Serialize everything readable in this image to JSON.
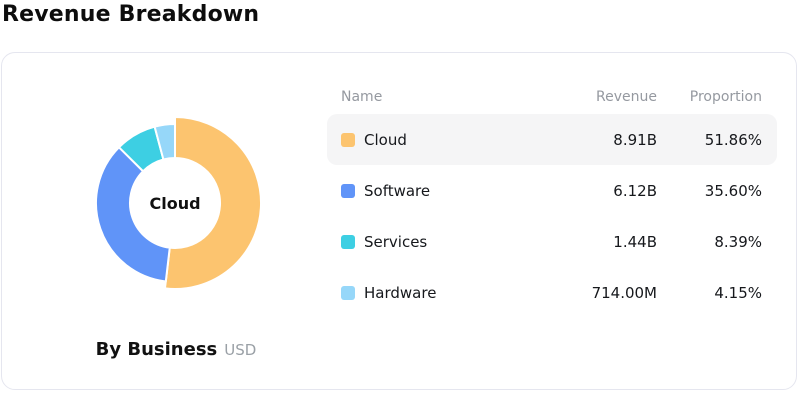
{
  "title": "Revenue Breakdown",
  "card": {
    "caption": {
      "label": "By Business",
      "currency": "USD"
    },
    "center_label": "Cloud"
  },
  "table": {
    "columns": [
      "Name",
      "Revenue",
      "Proportion"
    ],
    "rows": [
      {
        "name": "Cloud",
        "revenue": "8.91B",
        "proportion": "51.86%",
        "color": "#FCC46F",
        "highlighted": true
      },
      {
        "name": "Software",
        "revenue": "6.12B",
        "proportion": "35.60%",
        "color": "#6094F8",
        "highlighted": false
      },
      {
        "name": "Services",
        "revenue": "1.44B",
        "proportion": "8.39%",
        "color": "#3DCFE3",
        "highlighted": false
      },
      {
        "name": "Hardware",
        "revenue": "714.00M",
        "proportion": "4.15%",
        "color": "#96D7F9",
        "highlighted": false
      }
    ]
  },
  "chart_data": {
    "type": "pie",
    "subtype": "donut",
    "title": "Revenue Breakdown",
    "categories": [
      "Cloud",
      "Software",
      "Services",
      "Hardware"
    ],
    "values": [
      51.86,
      35.6,
      8.39,
      4.15
    ],
    "unit": "%",
    "revenue_labels": [
      "8.91B",
      "6.12B",
      "1.44B",
      "714.00M"
    ],
    "currency": "USD",
    "colors": [
      "#FCC46F",
      "#6094F8",
      "#3DCFE3",
      "#96D7F9"
    ],
    "center_label": "Cloud",
    "highlighted_index": 0,
    "start_angle_deg": 0,
    "direction": "clockwise",
    "legend_position": "right-table",
    "segment_gap_color": "#ffffff"
  },
  "colors": {
    "card_border": "#e5e6ef",
    "row_highlight_bg": "#f5f5f6",
    "header_text": "#9599a0",
    "body_text": "#16181c",
    "muted_text": "#9aa0a6"
  }
}
